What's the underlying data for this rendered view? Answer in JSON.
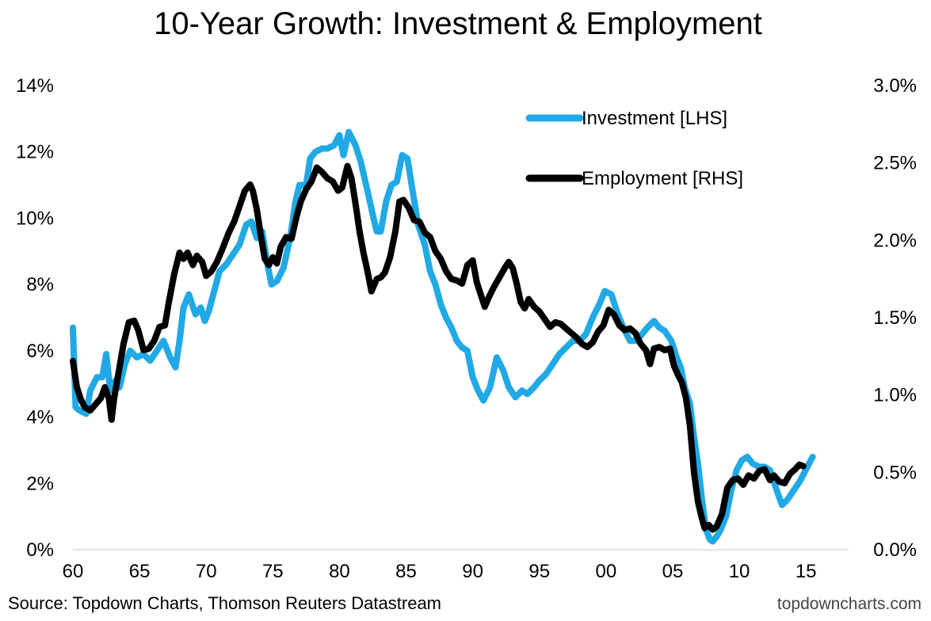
{
  "chart_data": {
    "type": "line",
    "title": "10-Year Growth: Investment & Employment",
    "source": "Source: Topdown Charts, Thomson Reuters Datastream",
    "watermark": "topdowncharts.com",
    "x_ticks": [
      "60",
      "65",
      "70",
      "75",
      "80",
      "85",
      "90",
      "95",
      "00",
      "05",
      "10",
      "15"
    ],
    "x_range": [
      1960,
      2018.2
    ],
    "y_left_ticks": [
      "0%",
      "2%",
      "4%",
      "6%",
      "8%",
      "10%",
      "12%",
      "14%"
    ],
    "y_left_range": [
      0,
      14
    ],
    "y_right_ticks": [
      "0.0%",
      "0.5%",
      "1.0%",
      "1.5%",
      "2.0%",
      "2.5%",
      "3.0%"
    ],
    "y_right_range": [
      0,
      3.0
    ],
    "legend_position": "top-right",
    "grid": false,
    "series": [
      {
        "name": "Investment [LHS]",
        "axis": "left",
        "color": "#21a9e6",
        "points": [
          [
            1960.0,
            6.7
          ],
          [
            1960.2,
            4.3
          ],
          [
            1960.5,
            4.2
          ],
          [
            1961.0,
            4.1
          ],
          [
            1961.3,
            4.8
          ],
          [
            1961.8,
            5.2
          ],
          [
            1962.2,
            5.2
          ],
          [
            1962.5,
            5.9
          ],
          [
            1962.8,
            4.8
          ],
          [
            1963.2,
            5.1
          ],
          [
            1963.5,
            4.9
          ],
          [
            1963.9,
            5.6
          ],
          [
            1964.3,
            6.0
          ],
          [
            1964.8,
            5.8
          ],
          [
            1965.3,
            5.9
          ],
          [
            1965.8,
            5.7
          ],
          [
            1966.3,
            6.0
          ],
          [
            1966.8,
            6.3
          ],
          [
            1967.3,
            5.8
          ],
          [
            1967.7,
            5.5
          ],
          [
            1968.0,
            6.3
          ],
          [
            1968.3,
            7.3
          ],
          [
            1968.7,
            7.7
          ],
          [
            1969.2,
            7.1
          ],
          [
            1969.6,
            7.3
          ],
          [
            1969.9,
            6.9
          ],
          [
            1970.2,
            7.2
          ],
          [
            1970.6,
            7.8
          ],
          [
            1971.0,
            8.4
          ],
          [
            1971.5,
            8.6
          ],
          [
            1972.0,
            8.9
          ],
          [
            1972.5,
            9.2
          ],
          [
            1973.0,
            9.8
          ],
          [
            1973.4,
            9.9
          ],
          [
            1973.8,
            9.4
          ],
          [
            1974.2,
            9.6
          ],
          [
            1974.6,
            8.6
          ],
          [
            1974.9,
            8.0
          ],
          [
            1975.3,
            8.1
          ],
          [
            1975.8,
            8.5
          ],
          [
            1976.3,
            9.4
          ],
          [
            1976.7,
            10.5
          ],
          [
            1977.0,
            11.0
          ],
          [
            1977.5,
            11.0
          ],
          [
            1977.8,
            11.8
          ],
          [
            1978.2,
            12.0
          ],
          [
            1978.7,
            12.1
          ],
          [
            1979.1,
            12.1
          ],
          [
            1979.6,
            12.2
          ],
          [
            1980.0,
            12.5
          ],
          [
            1980.3,
            11.9
          ],
          [
            1980.7,
            12.6
          ],
          [
            1981.2,
            12.2
          ],
          [
            1981.6,
            11.7
          ],
          [
            1982.0,
            11.0
          ],
          [
            1982.5,
            10.1
          ],
          [
            1982.8,
            9.6
          ],
          [
            1983.1,
            9.6
          ],
          [
            1983.5,
            10.5
          ],
          [
            1983.9,
            11.0
          ],
          [
            1984.3,
            11.1
          ],
          [
            1984.7,
            11.9
          ],
          [
            1985.1,
            11.8
          ],
          [
            1985.5,
            10.8
          ],
          [
            1985.9,
            9.8
          ],
          [
            1986.4,
            9.2
          ],
          [
            1986.8,
            8.4
          ],
          [
            1987.2,
            8.0
          ],
          [
            1987.6,
            7.4
          ],
          [
            1988.0,
            7.0
          ],
          [
            1988.4,
            6.7
          ],
          [
            1988.8,
            6.3
          ],
          [
            1989.2,
            6.1
          ],
          [
            1989.6,
            6.0
          ],
          [
            1990.0,
            5.2
          ],
          [
            1990.4,
            4.8
          ],
          [
            1990.8,
            4.5
          ],
          [
            1991.3,
            4.9
          ],
          [
            1991.8,
            5.8
          ],
          [
            1992.3,
            5.4
          ],
          [
            1992.7,
            4.9
          ],
          [
            1993.2,
            4.6
          ],
          [
            1993.7,
            4.8
          ],
          [
            1994.1,
            4.7
          ],
          [
            1994.6,
            4.9
          ],
          [
            1995.0,
            5.1
          ],
          [
            1995.5,
            5.3
          ],
          [
            1996.0,
            5.6
          ],
          [
            1996.5,
            5.9
          ],
          [
            1997.0,
            6.1
          ],
          [
            1997.5,
            6.3
          ],
          [
            1998.0,
            6.3
          ],
          [
            1998.5,
            6.5
          ],
          [
            1999.0,
            7.0
          ],
          [
            1999.5,
            7.4
          ],
          [
            1999.9,
            7.8
          ],
          [
            2000.4,
            7.7
          ],
          [
            2000.8,
            7.2
          ],
          [
            2001.3,
            6.7
          ],
          [
            2001.8,
            6.3
          ],
          [
            2002.2,
            6.3
          ],
          [
            2002.7,
            6.5
          ],
          [
            2003.1,
            6.7
          ],
          [
            2003.6,
            6.9
          ],
          [
            2004.0,
            6.7
          ],
          [
            2004.4,
            6.6
          ],
          [
            2004.9,
            6.3
          ],
          [
            2005.3,
            5.8
          ],
          [
            2005.6,
            5.5
          ],
          [
            2005.9,
            4.9
          ],
          [
            2006.3,
            4.4
          ],
          [
            2006.6,
            3.4
          ],
          [
            2006.9,
            2.6
          ],
          [
            2007.2,
            1.5
          ],
          [
            2007.5,
            0.6
          ],
          [
            2007.8,
            0.3
          ],
          [
            2008.0,
            0.25
          ],
          [
            2008.3,
            0.4
          ],
          [
            2008.6,
            0.6
          ],
          [
            2009.0,
            1.0
          ],
          [
            2009.4,
            1.8
          ],
          [
            2009.8,
            2.4
          ],
          [
            2010.2,
            2.7
          ],
          [
            2010.6,
            2.8
          ],
          [
            2011.0,
            2.6
          ],
          [
            2011.5,
            2.5
          ],
          [
            2011.9,
            2.5
          ],
          [
            2012.3,
            2.4
          ],
          [
            2012.8,
            1.8
          ],
          [
            2013.2,
            1.35
          ],
          [
            2013.6,
            1.5
          ],
          [
            2014.1,
            1.8
          ],
          [
            2014.6,
            2.1
          ],
          [
            2015.1,
            2.5
          ],
          [
            2015.5,
            2.8
          ]
        ]
      },
      {
        "name": "Employment [RHS]",
        "axis": "right",
        "color": "#000000",
        "points": [
          [
            1960.0,
            1.22
          ],
          [
            1960.3,
            1.05
          ],
          [
            1960.6,
            0.97
          ],
          [
            1960.9,
            0.92
          ],
          [
            1961.3,
            0.9
          ],
          [
            1961.7,
            0.94
          ],
          [
            1962.1,
            0.98
          ],
          [
            1962.4,
            1.05
          ],
          [
            1962.7,
            0.98
          ],
          [
            1962.9,
            0.84
          ],
          [
            1963.1,
            0.98
          ],
          [
            1963.4,
            1.13
          ],
          [
            1963.8,
            1.33
          ],
          [
            1964.2,
            1.47
          ],
          [
            1964.6,
            1.48
          ],
          [
            1964.9,
            1.42
          ],
          [
            1965.3,
            1.29
          ],
          [
            1965.7,
            1.3
          ],
          [
            1966.1,
            1.35
          ],
          [
            1966.5,
            1.44
          ],
          [
            1966.9,
            1.45
          ],
          [
            1967.2,
            1.6
          ],
          [
            1967.6,
            1.78
          ],
          [
            1968.0,
            1.92
          ],
          [
            1968.3,
            1.88
          ],
          [
            1968.6,
            1.92
          ],
          [
            1969.0,
            1.84
          ],
          [
            1969.3,
            1.9
          ],
          [
            1969.7,
            1.86
          ],
          [
            1970.0,
            1.77
          ],
          [
            1970.4,
            1.8
          ],
          [
            1970.8,
            1.86
          ],
          [
            1971.2,
            1.94
          ],
          [
            1971.7,
            2.05
          ],
          [
            1972.1,
            2.12
          ],
          [
            1972.5,
            2.22
          ],
          [
            1972.9,
            2.32
          ],
          [
            1973.3,
            2.36
          ],
          [
            1973.5,
            2.32
          ],
          [
            1973.8,
            2.2
          ],
          [
            1974.1,
            2.03
          ],
          [
            1974.4,
            1.88
          ],
          [
            1974.7,
            1.84
          ],
          [
            1975.0,
            1.89
          ],
          [
            1975.3,
            1.85
          ],
          [
            1975.6,
            1.96
          ],
          [
            1976.0,
            2.02
          ],
          [
            1976.4,
            2.01
          ],
          [
            1976.8,
            2.16
          ],
          [
            1977.1,
            2.25
          ],
          [
            1977.5,
            2.33
          ],
          [
            1977.9,
            2.38
          ],
          [
            1978.3,
            2.47
          ],
          [
            1978.7,
            2.44
          ],
          [
            1979.1,
            2.4
          ],
          [
            1979.5,
            2.38
          ],
          [
            1979.9,
            2.32
          ],
          [
            1980.2,
            2.34
          ],
          [
            1980.6,
            2.48
          ],
          [
            1980.9,
            2.4
          ],
          [
            1981.2,
            2.24
          ],
          [
            1981.5,
            2.06
          ],
          [
            1981.8,
            1.92
          ],
          [
            1982.1,
            1.8
          ],
          [
            1982.4,
            1.67
          ],
          [
            1982.8,
            1.75
          ],
          [
            1983.1,
            1.76
          ],
          [
            1983.4,
            1.79
          ],
          [
            1983.8,
            1.89
          ],
          [
            1984.2,
            2.06
          ],
          [
            1984.5,
            2.25
          ],
          [
            1984.8,
            2.26
          ],
          [
            1985.2,
            2.21
          ],
          [
            1985.6,
            2.13
          ],
          [
            1986.0,
            2.12
          ],
          [
            1986.4,
            2.05
          ],
          [
            1986.8,
            2.02
          ],
          [
            1987.2,
            1.93
          ],
          [
            1987.6,
            1.88
          ],
          [
            1988.0,
            1.8
          ],
          [
            1988.4,
            1.75
          ],
          [
            1988.8,
            1.74
          ],
          [
            1989.2,
            1.72
          ],
          [
            1989.6,
            1.84
          ],
          [
            1990.0,
            1.87
          ],
          [
            1990.3,
            1.73
          ],
          [
            1990.6,
            1.65
          ],
          [
            1990.9,
            1.57
          ],
          [
            1991.2,
            1.63
          ],
          [
            1991.6,
            1.7
          ],
          [
            1992.0,
            1.76
          ],
          [
            1992.4,
            1.82
          ],
          [
            1992.7,
            1.86
          ],
          [
            1993.0,
            1.82
          ],
          [
            1993.3,
            1.72
          ],
          [
            1993.6,
            1.6
          ],
          [
            1993.9,
            1.56
          ],
          [
            1994.2,
            1.62
          ],
          [
            1994.6,
            1.57
          ],
          [
            1995.0,
            1.54
          ],
          [
            1995.4,
            1.49
          ],
          [
            1995.8,
            1.44
          ],
          [
            1996.2,
            1.47
          ],
          [
            1996.6,
            1.46
          ],
          [
            1997.0,
            1.43
          ],
          [
            1997.4,
            1.4
          ],
          [
            1997.8,
            1.37
          ],
          [
            1998.2,
            1.33
          ],
          [
            1998.6,
            1.31
          ],
          [
            1999.0,
            1.34
          ],
          [
            1999.4,
            1.41
          ],
          [
            1999.8,
            1.45
          ],
          [
            2000.2,
            1.55
          ],
          [
            2000.6,
            1.52
          ],
          [
            2001.0,
            1.45
          ],
          [
            2001.4,
            1.42
          ],
          [
            2001.8,
            1.43
          ],
          [
            2002.2,
            1.4
          ],
          [
            2002.6,
            1.33
          ],
          [
            2003.0,
            1.29
          ],
          [
            2003.3,
            1.2
          ],
          [
            2003.6,
            1.3
          ],
          [
            2004.0,
            1.31
          ],
          [
            2004.4,
            1.29
          ],
          [
            2004.8,
            1.3
          ],
          [
            2005.1,
            1.19
          ],
          [
            2005.4,
            1.13
          ],
          [
            2005.7,
            1.08
          ],
          [
            2006.0,
            0.98
          ],
          [
            2006.3,
            0.8
          ],
          [
            2006.6,
            0.5
          ],
          [
            2006.9,
            0.31
          ],
          [
            2007.2,
            0.2
          ],
          [
            2007.4,
            0.14
          ],
          [
            2007.7,
            0.16
          ],
          [
            2008.0,
            0.13
          ],
          [
            2008.3,
            0.15
          ],
          [
            2008.7,
            0.23
          ],
          [
            2009.1,
            0.4
          ],
          [
            2009.5,
            0.45
          ],
          [
            2009.9,
            0.46
          ],
          [
            2010.3,
            0.42
          ],
          [
            2010.7,
            0.48
          ],
          [
            2011.1,
            0.46
          ],
          [
            2011.5,
            0.51
          ],
          [
            2011.9,
            0.52
          ],
          [
            2012.3,
            0.45
          ],
          [
            2012.6,
            0.48
          ],
          [
            2013.0,
            0.44
          ],
          [
            2013.4,
            0.43
          ],
          [
            2013.8,
            0.49
          ],
          [
            2014.2,
            0.52
          ],
          [
            2014.5,
            0.55
          ],
          [
            2014.8,
            0.54
          ]
        ]
      }
    ]
  }
}
